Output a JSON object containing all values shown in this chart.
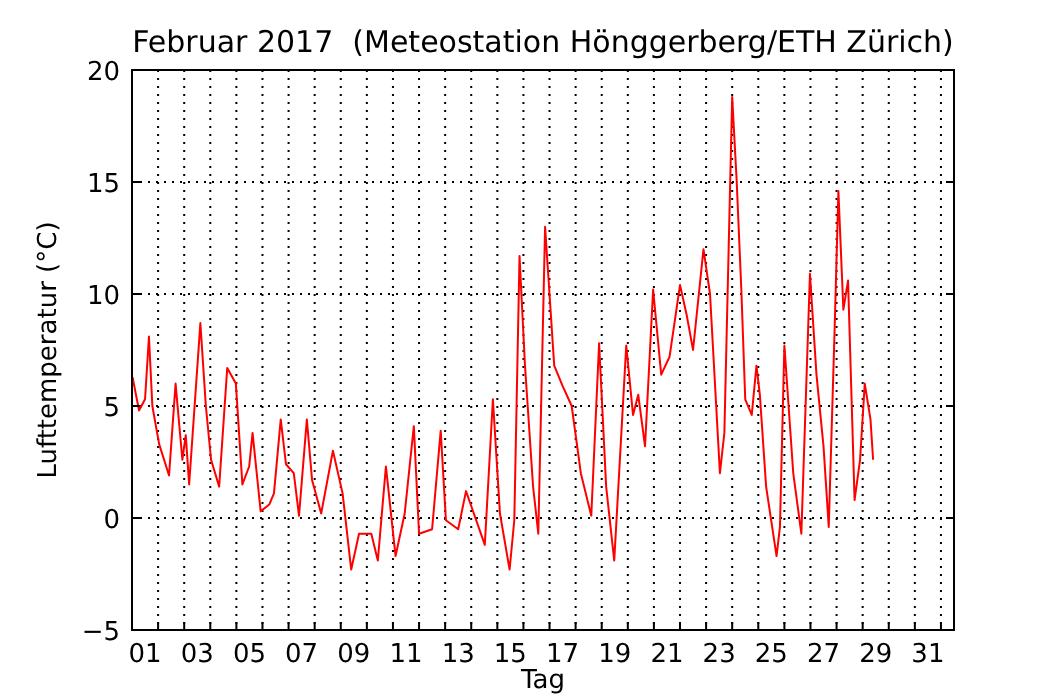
{
  "chart_data": {
    "type": "line",
    "title": "Februar 2017  (Meteostation Hönggerberg/ETH Zürich)",
    "xlabel": "Tag",
    "ylabel": "Lufttemperatur (°C)",
    "x": [
      0.52,
      0.77,
      1.0,
      1.15,
      1.28,
      1.54,
      1.92,
      2.17,
      2.43,
      2.56,
      2.69,
      3.12,
      3.33,
      3.53,
      3.84,
      4.15,
      4.48,
      4.73,
      4.99,
      5.12,
      5.43,
      5.76,
      5.94,
      6.2,
      6.4,
      6.7,
      6.9,
      7.2,
      7.4,
      7.75,
      8.2,
      8.57,
      8.9,
      9.2,
      9.67,
      9.92,
      10.23,
      10.6,
      10.95,
      11.3,
      11.5,
      12.0,
      12.33,
      12.53,
      13.0,
      13.3,
      14.02,
      14.33,
      14.6,
      14.97,
      15.15,
      15.35,
      15.56,
      15.87,
      16.07,
      16.33,
      16.68,
      17.0,
      17.35,
      17.7,
      18.1,
      18.4,
      18.67,
      18.98,
      19.44,
      19.7,
      19.9,
      20.16,
      20.47,
      20.78,
      21.1,
      21.5,
      21.75,
      22.0,
      22.4,
      22.65,
      23.03,
      23.2,
      23.5,
      23.67,
      23.85,
      24.0,
      24.25,
      24.43,
      24.56,
      24.8,
      25.2,
      25.33,
      25.5,
      25.84,
      26.15,
      26.48,
      26.73,
      27.0,
      27.2,
      27.42,
      27.57,
      27.76,
      27.94,
      28.19,
      28.4,
      28.58,
      28.8,
      28.9
    ],
    "series": [
      {
        "color": "#ff0000",
        "values": [
          6.3,
          4.8,
          5.3,
          8.1,
          5.0,
          3.3,
          1.9,
          6.0,
          2.6,
          3.7,
          1.5,
          8.7,
          5.0,
          2.6,
          1.4,
          6.7,
          6.0,
          1.5,
          2.3,
          3.8,
          0.3,
          0.6,
          1.1,
          4.4,
          2.4,
          2.0,
          0.1,
          4.4,
          1.7,
          0.2,
          3.0,
          1.1,
          -2.3,
          -0.7,
          -0.7,
          -1.9,
          2.3,
          -1.7,
          0.2,
          4.1,
          -0.7,
          -0.5,
          3.9,
          -0.1,
          -0.5,
          1.2,
          -1.2,
          5.3,
          0.2,
          -2.3,
          -0.1,
          11.7,
          6.8,
          1.4,
          -0.7,
          13.0,
          6.8,
          5.9,
          5.0,
          2.0,
          0.1,
          7.8,
          1.4,
          -1.9,
          7.7,
          4.6,
          5.5,
          3.2,
          10.2,
          6.4,
          7.2,
          10.4,
          9.1,
          7.5,
          12.0,
          10.0,
          2.0,
          3.8,
          18.8,
          15.1,
          10.2,
          5.3,
          4.6,
          6.8,
          5.5,
          1.4,
          -1.7,
          -0.4,
          7.7,
          2.0,
          -0.7,
          10.9,
          6.4,
          3.2,
          -0.4,
          8.2,
          14.6,
          9.3,
          10.6,
          0.8,
          2.6,
          6.0,
          4.4,
          2.6
        ]
      }
    ],
    "xlim": [
      0.5,
      32
    ],
    "xticks": [
      {
        "value": 1,
        "label": "01"
      },
      {
        "value": 3,
        "label": "03"
      },
      {
        "value": 5,
        "label": "05"
      },
      {
        "value": 7,
        "label": "07"
      },
      {
        "value": 9,
        "label": "09"
      },
      {
        "value": 11,
        "label": "11"
      },
      {
        "value": 13,
        "label": "13"
      },
      {
        "value": 15,
        "label": "15"
      },
      {
        "value": 17,
        "label": "17"
      },
      {
        "value": 19,
        "label": "19"
      },
      {
        "value": 21,
        "label": "21"
      },
      {
        "value": 23,
        "label": "23"
      },
      {
        "value": 25,
        "label": "25"
      },
      {
        "value": 27,
        "label": "27"
      },
      {
        "value": 29,
        "label": "29"
      },
      {
        "value": 31,
        "label": "31"
      },
      {
        "value": 1.5,
        "label": null
      },
      {
        "value": 2.5,
        "label": null
      },
      {
        "value": 3.5,
        "label": null
      },
      {
        "value": 4.5,
        "label": null
      },
      {
        "value": 5.5,
        "label": null
      },
      {
        "value": 6.5,
        "label": null
      },
      {
        "value": 7.5,
        "label": null
      },
      {
        "value": 8.5,
        "label": null
      },
      {
        "value": 9.5,
        "label": null
      },
      {
        "value": 10.5,
        "label": null
      },
      {
        "value": 11.5,
        "label": null
      },
      {
        "value": 12.5,
        "label": null
      },
      {
        "value": 13.5,
        "label": null
      },
      {
        "value": 14.5,
        "label": null
      },
      {
        "value": 15.5,
        "label": null
      },
      {
        "value": 16.5,
        "label": null
      },
      {
        "value": 17.5,
        "label": null
      },
      {
        "value": 18.5,
        "label": null
      },
      {
        "value": 19.5,
        "label": null
      },
      {
        "value": 20.5,
        "label": null
      },
      {
        "value": 21.5,
        "label": null
      },
      {
        "value": 22.5,
        "label": null
      },
      {
        "value": 23.5,
        "label": null
      },
      {
        "value": 24.5,
        "label": null
      },
      {
        "value": 25.5,
        "label": null
      },
      {
        "value": 26.5,
        "label": null
      },
      {
        "value": 27.5,
        "label": null
      },
      {
        "value": 28.5,
        "label": null
      },
      {
        "value": 29.5,
        "label": null
      },
      {
        "value": 30.5,
        "label": null
      },
      {
        "value": 31.5,
        "label": null
      }
    ],
    "ylim": [
      -5,
      20
    ],
    "yticks": [
      {
        "value": -5,
        "label": "−5"
      },
      0,
      5,
      10,
      15,
      20
    ],
    "grid": true,
    "line_style": "solid",
    "marker": "none"
  }
}
